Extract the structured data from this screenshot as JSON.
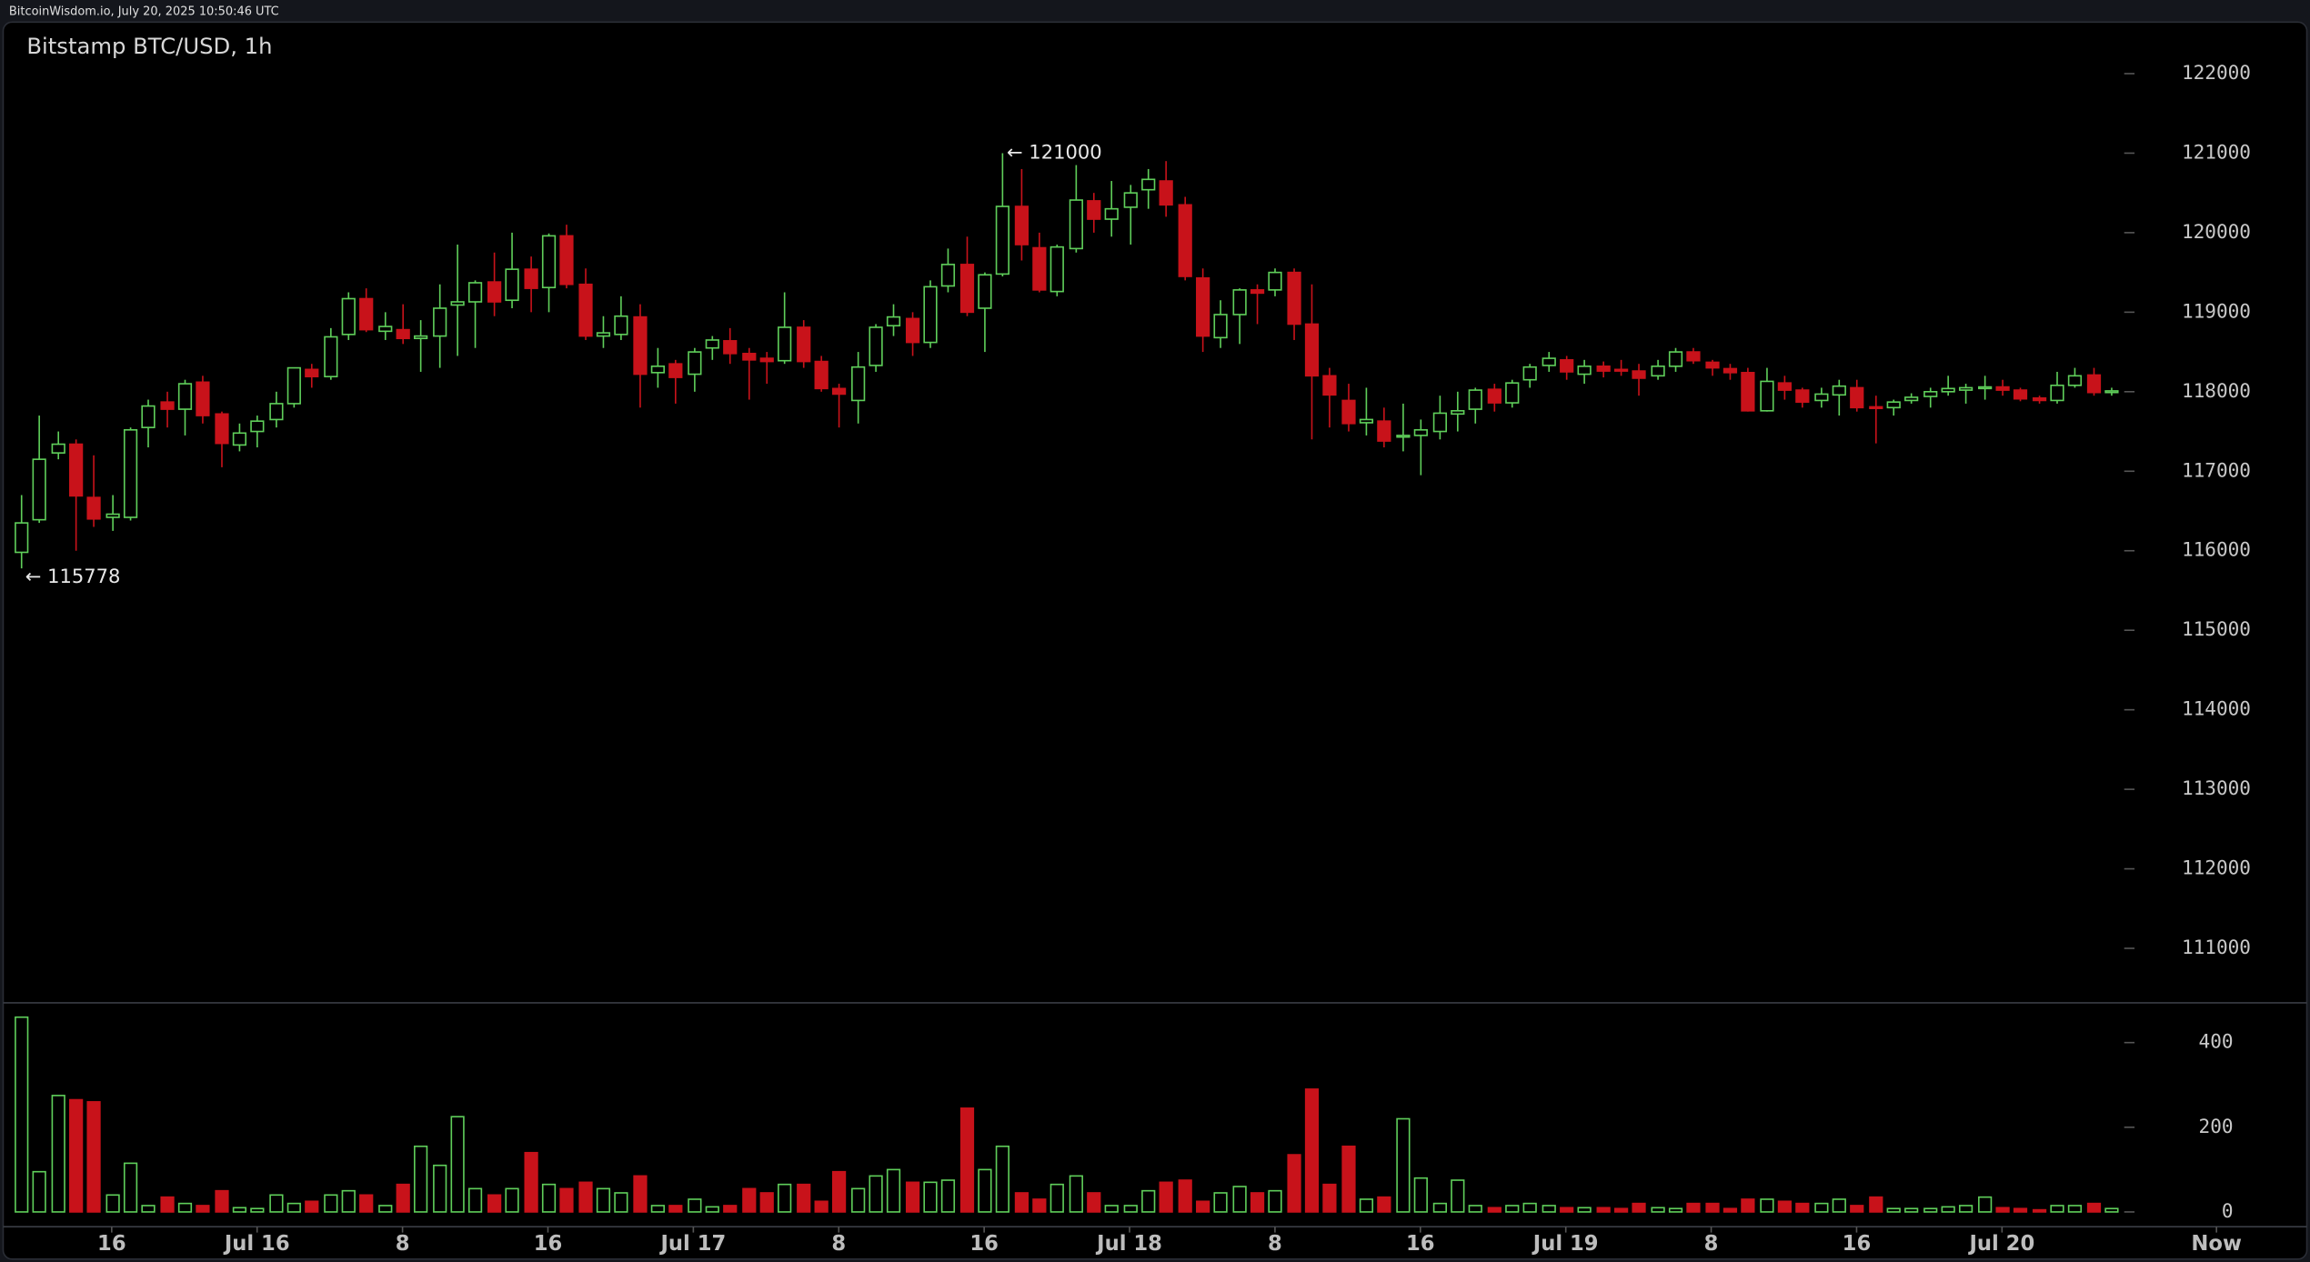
{
  "header": {
    "text": "BitcoinWisdom.io, July 20, 2025 10:50:46 UTC"
  },
  "chart_data": {
    "type": "candlestick",
    "title": "Bitstamp BTC/USD, 1h",
    "up_color": "#5fce5a",
    "down_color": "#c8121a",
    "xlim": [
      -1,
      123
    ],
    "xticks": [
      {
        "value": 5,
        "label": "16"
      },
      {
        "value": 13,
        "label": "Jul 16"
      },
      {
        "value": 21,
        "label": "8"
      },
      {
        "value": 29,
        "label": "16"
      },
      {
        "value": 37,
        "label": "Jul 17"
      },
      {
        "value": 45,
        "label": "8"
      },
      {
        "value": 53,
        "label": "16"
      },
      {
        "value": 61,
        "label": "Jul 18"
      },
      {
        "value": 69,
        "label": "8"
      },
      {
        "value": 77,
        "label": "16"
      },
      {
        "value": 85,
        "label": "Jul 19"
      },
      {
        "value": 93,
        "label": "8"
      },
      {
        "value": 101,
        "label": "16"
      },
      {
        "value": 109,
        "label": "Jul 20"
      },
      {
        "value": 120.8,
        "label": "Now"
      }
    ],
    "ylim": [
      110400,
      122600
    ],
    "yticks": [
      111000,
      112000,
      113000,
      114000,
      115000,
      116000,
      117000,
      118000,
      119000,
      120000,
      121000,
      122000
    ],
    "y2lim": [
      0,
      480
    ],
    "y2ticks": [
      0,
      200,
      400
    ],
    "annotations": [
      {
        "text": "← 121000"
      },
      {
        "text": "← 115778"
      }
    ],
    "open": [
      115980,
      116390,
      117230,
      117340,
      116670,
      116420,
      116420,
      117550,
      117870,
      117780,
      118120,
      117720,
      117330,
      117500,
      117650,
      117850,
      118280,
      118190,
      118720,
      119170,
      118760,
      118780,
      118670,
      118700,
      119090,
      119130,
      119380,
      119150,
      119540,
      119310,
      119960,
      119350,
      118700,
      118720,
      118940,
      118240,
      118350,
      118220,
      118550,
      118640,
      118480,
      118420,
      118390,
      118810,
      118380,
      118040,
      117890,
      118330,
      118830,
      118920,
      118620,
      119330,
      119600,
      119050,
      119480,
      120330,
      119810,
      119260,
      119800,
      120400,
      120170,
      120320,
      120540,
      120650,
      120350,
      119430,
      118680,
      118970,
      119280,
      119280,
      119500,
      118850,
      118200,
      117890,
      117610,
      117630,
      117430,
      117450,
      117500,
      117720,
      117780,
      118030,
      117860,
      118150,
      118330,
      118400,
      118220,
      118320,
      118280,
      118260,
      118200,
      118320,
      118500,
      118370,
      118290,
      118240,
      117760,
      118110,
      118020,
      117890,
      117960,
      118050,
      117810,
      117800,
      117890,
      117940,
      118000,
      118020,
      118040,
      118060,
      118020,
      117920,
      117890,
      118080,
      118210,
      117990
    ],
    "high": [
      116700,
      117700,
      117500,
      117400,
      117200,
      116700,
      117550,
      117900,
      118000,
      118150,
      118200,
      117750,
      117600,
      117700,
      118000,
      118300,
      118350,
      118800,
      119250,
      119300,
      119000,
      119100,
      118900,
      119350,
      119850,
      119400,
      119750,
      120000,
      119700,
      119990,
      120100,
      119550,
      118950,
      119200,
      119100,
      118550,
      118400,
      118550,
      118700,
      118800,
      118550,
      118500,
      119250,
      118900,
      118450,
      118100,
      118500,
      118850,
      119100,
      119000,
      119400,
      119800,
      119950,
      119500,
      121000,
      120800,
      120000,
      119850,
      120850,
      120500,
      120650,
      120600,
      120800,
      120900,
      120450,
      119550,
      119150,
      119300,
      119350,
      119550,
      119550,
      119350,
      118300,
      118100,
      118050,
      117800,
      117850,
      117650,
      117950,
      118000,
      118050,
      118100,
      118150,
      118350,
      118500,
      118450,
      118400,
      118380,
      118400,
      118350,
      118400,
      118550,
      118550,
      118400,
      118350,
      118300,
      118300,
      118200,
      118050,
      118050,
      118150,
      118150,
      117950,
      117900,
      117980,
      118050,
      118200,
      118100,
      118200,
      118150,
      118050,
      117950,
      118250,
      118300,
      118300,
      118050
    ],
    "low": [
      115778,
      116350,
      117150,
      116000,
      116300,
      116250,
      116380,
      117300,
      117550,
      117450,
      117600,
      117050,
      117250,
      117300,
      117550,
      117800,
      118050,
      118150,
      118650,
      118750,
      118650,
      118600,
      118250,
      118300,
      118450,
      118550,
      118950,
      119050,
      119000,
      119000,
      119300,
      118650,
      118550,
      118650,
      117800,
      118050,
      117850,
      118000,
      118400,
      118350,
      117900,
      118100,
      118350,
      118300,
      118000,
      117550,
      117600,
      118250,
      118700,
      118450,
      118550,
      119250,
      118950,
      118500,
      119450,
      119650,
      119250,
      119200,
      119750,
      120000,
      119950,
      119850,
      120300,
      120200,
      119400,
      118500,
      118550,
      118600,
      118850,
      119200,
      118650,
      117400,
      117550,
      117500,
      117450,
      117300,
      117250,
      116950,
      117400,
      117500,
      117600,
      117750,
      117800,
      118050,
      118250,
      118150,
      118100,
      118180,
      118200,
      117950,
      118150,
      118250,
      118350,
      118200,
      118150,
      117750,
      117750,
      117900,
      117800,
      117800,
      117700,
      117750,
      117350,
      117700,
      117850,
      117800,
      117950,
      117850,
      117900,
      117950,
      117880,
      117850,
      117850,
      118050,
      117950,
      117950
    ],
    "close": [
      116350,
      117150,
      117340,
      116690,
      116400,
      116460,
      117520,
      117820,
      117780,
      118100,
      117700,
      117350,
      117480,
      117630,
      117850,
      118300,
      118190,
      118690,
      119170,
      118780,
      118820,
      118670,
      118700,
      119050,
      119130,
      119370,
      119130,
      119540,
      119300,
      119960,
      119350,
      118700,
      118740,
      118950,
      118220,
      118320,
      118180,
      118500,
      118650,
      118480,
      118400,
      118380,
      118810,
      118380,
      118040,
      117970,
      118310,
      118810,
      118940,
      118620,
      119320,
      119600,
      119000,
      119470,
      120330,
      119850,
      119280,
      119820,
      120410,
      120170,
      120300,
      120500,
      120670,
      120350,
      119450,
      118700,
      118970,
      119280,
      119240,
      119500,
      118850,
      118200,
      117960,
      117600,
      117650,
      117380,
      117450,
      117520,
      117730,
      117760,
      118020,
      117860,
      118110,
      118310,
      118420,
      118250,
      118320,
      118260,
      118260,
      118170,
      118320,
      118500,
      118390,
      118300,
      118240,
      117760,
      118130,
      118020,
      117870,
      117970,
      118070,
      117800,
      117790,
      117870,
      117930,
      118000,
      118040,
      118050,
      118060,
      118020,
      117910,
      117890,
      118080,
      118200,
      117990,
      118010
    ],
    "volume": [
      460,
      95,
      275,
      265,
      260,
      40,
      115,
      15,
      35,
      20,
      15,
      50,
      10,
      8,
      40,
      20,
      25,
      40,
      50,
      40,
      15,
      65,
      155,
      110,
      225,
      55,
      40,
      55,
      140,
      65,
      55,
      70,
      55,
      45,
      85,
      15,
      15,
      30,
      12,
      15,
      55,
      45,
      65,
      65,
      25,
      95,
      55,
      85,
      100,
      70,
      70,
      75,
      245,
      100,
      155,
      45,
      30,
      65,
      85,
      45,
      15,
      15,
      50,
      70,
      75,
      25,
      45,
      60,
      45,
      50,
      135,
      290,
      65,
      155,
      30,
      35,
      220,
      80,
      20,
      75,
      15,
      10,
      15,
      20,
      15,
      10,
      10,
      10,
      8,
      20,
      10,
      8,
      20,
      20,
      8,
      30,
      30,
      25,
      20,
      20,
      30,
      15,
      35,
      8,
      8,
      8,
      12,
      15,
      35,
      10,
      8,
      5,
      15,
      15,
      20,
      8
    ]
  }
}
